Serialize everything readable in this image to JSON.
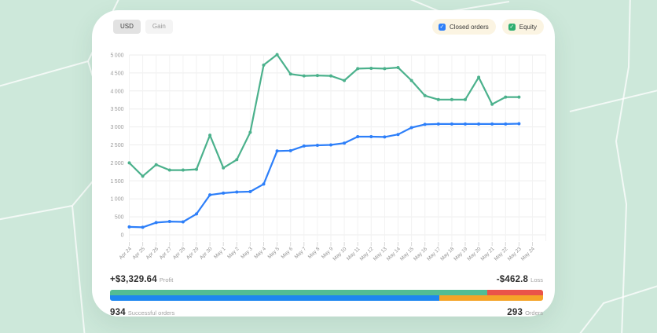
{
  "toolbar": {
    "usd_label": "USD",
    "gain_label": "Gain",
    "selected": "USD"
  },
  "legend": {
    "items": [
      {
        "label": "Closed orders",
        "color": "#2d7ff9",
        "checked": true
      },
      {
        "label": "Equity",
        "color": "#2fae71",
        "checked": true
      }
    ]
  },
  "chart_data": {
    "type": "line",
    "title": "",
    "xlabel": "",
    "ylabel": "",
    "x": [
      "Apr 24",
      "Apr 25",
      "Apr 26",
      "Apr 27",
      "Apr 28",
      "Apr 29",
      "Apr 30",
      "May 1",
      "May 2",
      "May 3",
      "May 4",
      "May 5",
      "May 6",
      "May 7",
      "May 8",
      "May 9",
      "May 10",
      "May 11",
      "May 12",
      "May 13",
      "May 14",
      "May 15",
      "May 16",
      "May 17",
      "May 18",
      "May 19",
      "May 20",
      "May 21",
      "May 22",
      "May 23",
      "May 24"
    ],
    "series": [
      {
        "name": "Closed orders",
        "color": "#2d7ff9",
        "values": [
          220,
          210,
          340,
          370,
          360,
          580,
          1110,
          1160,
          1190,
          1200,
          1410,
          2330,
          2340,
          2470,
          2490,
          2500,
          2550,
          2730,
          2730,
          2720,
          2790,
          2980,
          3070,
          3080,
          3080,
          3080,
          3080,
          3080,
          3080,
          3090,
          null
        ]
      },
      {
        "name": "Equity",
        "color": "#4bb18c",
        "values": [
          2000,
          1630,
          1950,
          1800,
          1800,
          1820,
          2770,
          1860,
          2090,
          2850,
          4720,
          5010,
          4470,
          4420,
          4430,
          4420,
          4290,
          4620,
          4630,
          4620,
          4650,
          4290,
          3870,
          3760,
          3760,
          3760,
          4380,
          3630,
          3830,
          3830,
          null
        ]
      }
    ],
    "ylim": [
      0,
      5000
    ],
    "ytick_step": 500,
    "grid": true,
    "legend_position": "top-right"
  },
  "stats": {
    "profit_value": "+$3,329.64",
    "profit_label": "Profit",
    "loss_value": "-$462.8",
    "loss_label": "Loss",
    "successful_value": "934",
    "successful_label": "Successful orders",
    "orders_value": "293",
    "orders_label": "Orders",
    "profit_pct": 87.2,
    "success_pct": 76.1,
    "bar_colors": {
      "profit": "#52bd94",
      "loss": "#ea5349",
      "success": "#1e87f0",
      "other": "#f5a428"
    }
  },
  "colors": {
    "page_background": "#cde8da",
    "pattern_line": "#ffffff",
    "card_background": "#ffffff"
  }
}
